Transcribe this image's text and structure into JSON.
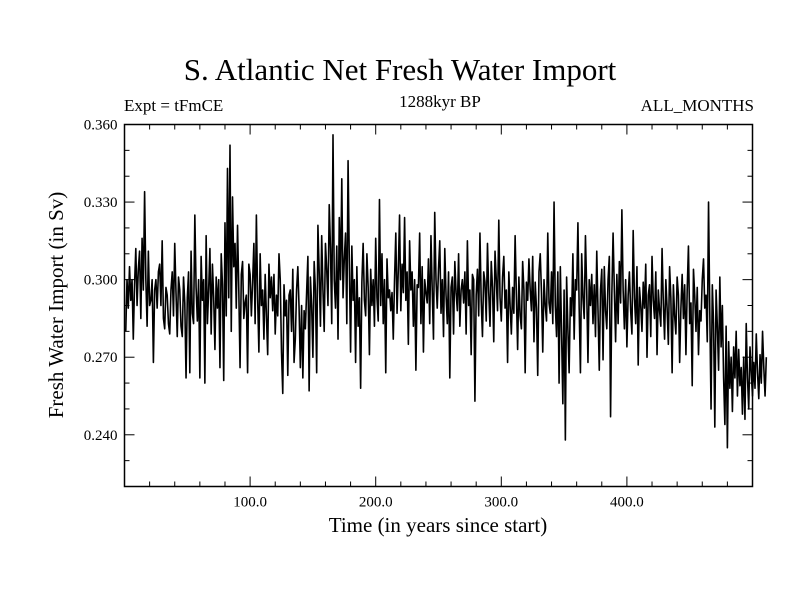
{
  "chart_data": {
    "type": "line",
    "title": "S. Atlantic Net Fresh Water Import",
    "subtitle": "1288kyr BP",
    "left_label": "Expt = tFmCE",
    "right_label": "ALL_MONTHS",
    "xlabel": "Time (in years since start)",
    "ylabel": "Fresh Water Import (in Sv)",
    "xlim": [
      0,
      500
    ],
    "ylim": [
      0.22,
      0.36
    ],
    "x_ticks": [
      100,
      200,
      300,
      400
    ],
    "x_tick_labels": [
      "100.0",
      "200.0",
      "300.0",
      "400.0"
    ],
    "y_ticks": [
      0.24,
      0.27,
      0.3,
      0.33,
      0.36
    ],
    "y_tick_labels": [
      "0.240",
      "0.270",
      "0.300",
      "0.330",
      "0.360"
    ],
    "grid": false,
    "series": [
      {
        "name": "Net Fresh Water Import",
        "x_start": 1,
        "x_step": 1,
        "values": [
          0.28,
          0.3,
          0.289,
          0.305,
          0.292,
          0.3,
          0.277,
          0.298,
          0.312,
          0.29,
          0.304,
          0.311,
          0.285,
          0.316,
          0.296,
          0.334,
          0.3,
          0.282,
          0.311,
          0.29,
          0.292,
          0.3,
          0.268,
          0.296,
          0.3,
          0.289,
          0.303,
          0.306,
          0.29,
          0.315,
          0.285,
          0.281,
          0.297,
          0.294,
          0.283,
          0.279,
          0.296,
          0.303,
          0.286,
          0.314,
          0.295,
          0.278,
          0.301,
          0.296,
          0.282,
          0.278,
          0.301,
          0.291,
          0.262,
          0.293,
          0.303,
          0.264,
          0.311,
          0.287,
          0.283,
          0.325,
          0.297,
          0.284,
          0.3,
          0.262,
          0.309,
          0.292,
          0.3,
          0.26,
          0.317,
          0.283,
          0.296,
          0.312,
          0.279,
          0.306,
          0.293,
          0.273,
          0.301,
          0.289,
          0.3,
          0.266,
          0.31,
          0.298,
          0.261,
          0.322,
          0.286,
          0.343,
          0.293,
          0.352,
          0.28,
          0.332,
          0.305,
          0.314,
          0.289,
          0.321,
          0.296,
          0.266,
          0.302,
          0.307,
          0.285,
          0.291,
          0.294,
          0.264,
          0.306,
          0.302,
          0.286,
          0.299,
          0.314,
          0.283,
          0.325,
          0.293,
          0.272,
          0.31,
          0.29,
          0.296,
          0.277,
          0.302,
          0.286,
          0.271,
          0.306,
          0.293,
          0.301,
          0.288,
          0.302,
          0.279,
          0.294,
          0.286,
          0.31,
          0.3,
          0.272,
          0.256,
          0.298,
          0.286,
          0.292,
          0.263,
          0.294,
          0.296,
          0.28,
          0.304,
          0.268,
          0.277,
          0.296,
          0.305,
          0.289,
          0.266,
          0.29,
          0.262,
          0.288,
          0.281,
          0.295,
          0.309,
          0.257,
          0.301,
          0.29,
          0.27,
          0.307,
          0.296,
          0.264,
          0.321,
          0.303,
          0.282,
          0.317,
          0.296,
          0.28,
          0.314,
          0.304,
          0.29,
          0.329,
          0.312,
          0.283,
          0.356,
          0.3,
          0.289,
          0.313,
          0.277,
          0.324,
          0.3,
          0.339,
          0.293,
          0.308,
          0.318,
          0.283,
          0.346,
          0.307,
          0.272,
          0.313,
          0.292,
          0.3,
          0.268,
          0.305,
          0.282,
          0.293,
          0.258,
          0.299,
          0.314,
          0.292,
          0.286,
          0.31,
          0.297,
          0.271,
          0.304,
          0.29,
          0.3,
          0.282,
          0.316,
          0.293,
          0.284,
          0.331,
          0.29,
          0.31,
          0.283,
          0.3,
          0.264,
          0.308,
          0.293,
          0.296,
          0.288,
          0.295,
          0.277,
          0.3,
          0.318,
          0.287,
          0.304,
          0.325,
          0.288,
          0.306,
          0.295,
          0.324,
          0.292,
          0.303,
          0.275,
          0.315,
          0.296,
          0.303,
          0.282,
          0.3,
          0.265,
          0.298,
          0.297,
          0.318,
          0.283,
          0.305,
          0.272,
          0.3,
          0.295,
          0.291,
          0.308,
          0.283,
          0.317,
          0.296,
          0.277,
          0.326,
          0.3,
          0.289,
          0.304,
          0.315,
          0.287,
          0.3,
          0.278,
          0.312,
          0.294,
          0.283,
          0.303,
          0.262,
          0.297,
          0.301,
          0.279,
          0.307,
          0.295,
          0.288,
          0.31,
          0.282,
          0.296,
          0.3,
          0.291,
          0.303,
          0.279,
          0.315,
          0.29,
          0.296,
          0.271,
          0.302,
          0.3,
          0.253,
          0.294,
          0.304,
          0.286,
          0.318,
          0.292,
          0.278,
          0.303,
          0.299,
          0.284,
          0.314,
          0.295,
          0.282,
          0.307,
          0.297,
          0.276,
          0.311,
          0.3,
          0.288,
          0.323,
          0.293,
          0.284,
          0.301,
          0.309,
          0.289,
          0.296,
          0.268,
          0.303,
          0.29,
          0.279,
          0.297,
          0.287,
          0.317,
          0.294,
          0.273,
          0.301,
          0.286,
          0.281,
          0.307,
          0.296,
          0.264,
          0.299,
          0.292,
          0.308,
          0.296,
          0.288,
          0.309,
          0.276,
          0.299,
          0.289,
          0.263,
          0.303,
          0.31,
          0.295,
          0.272,
          0.3,
          0.29,
          0.284,
          0.318,
          0.291,
          0.287,
          0.303,
          0.283,
          0.33,
          0.29,
          0.278,
          0.303,
          0.26,
          0.305,
          0.279,
          0.252,
          0.296,
          0.238,
          0.301,
          0.281,
          0.264,
          0.293,
          0.286,
          0.31,
          0.277,
          0.3,
          0.296,
          0.322,
          0.289,
          0.264,
          0.31,
          0.293,
          0.285,
          0.317,
          0.296,
          0.268,
          0.3,
          0.29,
          0.302,
          0.283,
          0.298,
          0.278,
          0.311,
          0.288,
          0.265,
          0.296,
          0.304,
          0.269,
          0.305,
          0.288,
          0.281,
          0.3,
          0.309,
          0.247,
          0.294,
          0.318,
          0.296,
          0.276,
          0.302,
          0.283,
          0.307,
          0.291,
          0.327,
          0.296,
          0.281,
          0.3,
          0.274,
          0.294,
          0.303,
          0.288,
          0.279,
          0.319,
          0.293,
          0.283,
          0.305,
          0.267,
          0.297,
          0.29,
          0.28,
          0.299,
          0.289,
          0.306,
          0.27,
          0.294,
          0.298,
          0.278,
          0.309,
          0.292,
          0.285,
          0.303,
          0.271,
          0.296,
          0.288,
          0.282,
          0.312,
          0.291,
          0.277,
          0.3,
          0.289,
          0.275,
          0.305,
          0.293,
          0.264,
          0.298,
          0.286,
          0.279,
          0.301,
          0.294,
          0.268,
          0.289,
          0.302,
          0.285,
          0.298,
          0.271,
          0.296,
          0.313,
          0.283,
          0.291,
          0.259,
          0.304,
          0.294,
          0.28,
          0.297,
          0.271,
          0.288,
          0.284,
          0.3,
          0.308,
          0.289,
          0.294,
          0.276,
          0.33,
          0.287,
          0.25,
          0.298,
          0.283,
          0.243,
          0.296,
          0.282,
          0.265,
          0.301,
          0.274,
          0.29,
          0.262,
          0.244,
          0.282,
          0.235,
          0.276,
          0.258,
          0.27,
          0.249,
          0.274,
          0.262,
          0.28,
          0.255,
          0.273,
          0.259,
          0.266,
          0.248,
          0.27,
          0.246,
          0.283,
          0.262,
          0.25,
          0.274,
          0.264,
          0.255,
          0.268,
          0.258,
          0.279,
          0.264,
          0.254,
          0.271,
          0.26,
          0.28,
          0.266,
          0.255,
          0.27
        ]
      }
    ]
  }
}
